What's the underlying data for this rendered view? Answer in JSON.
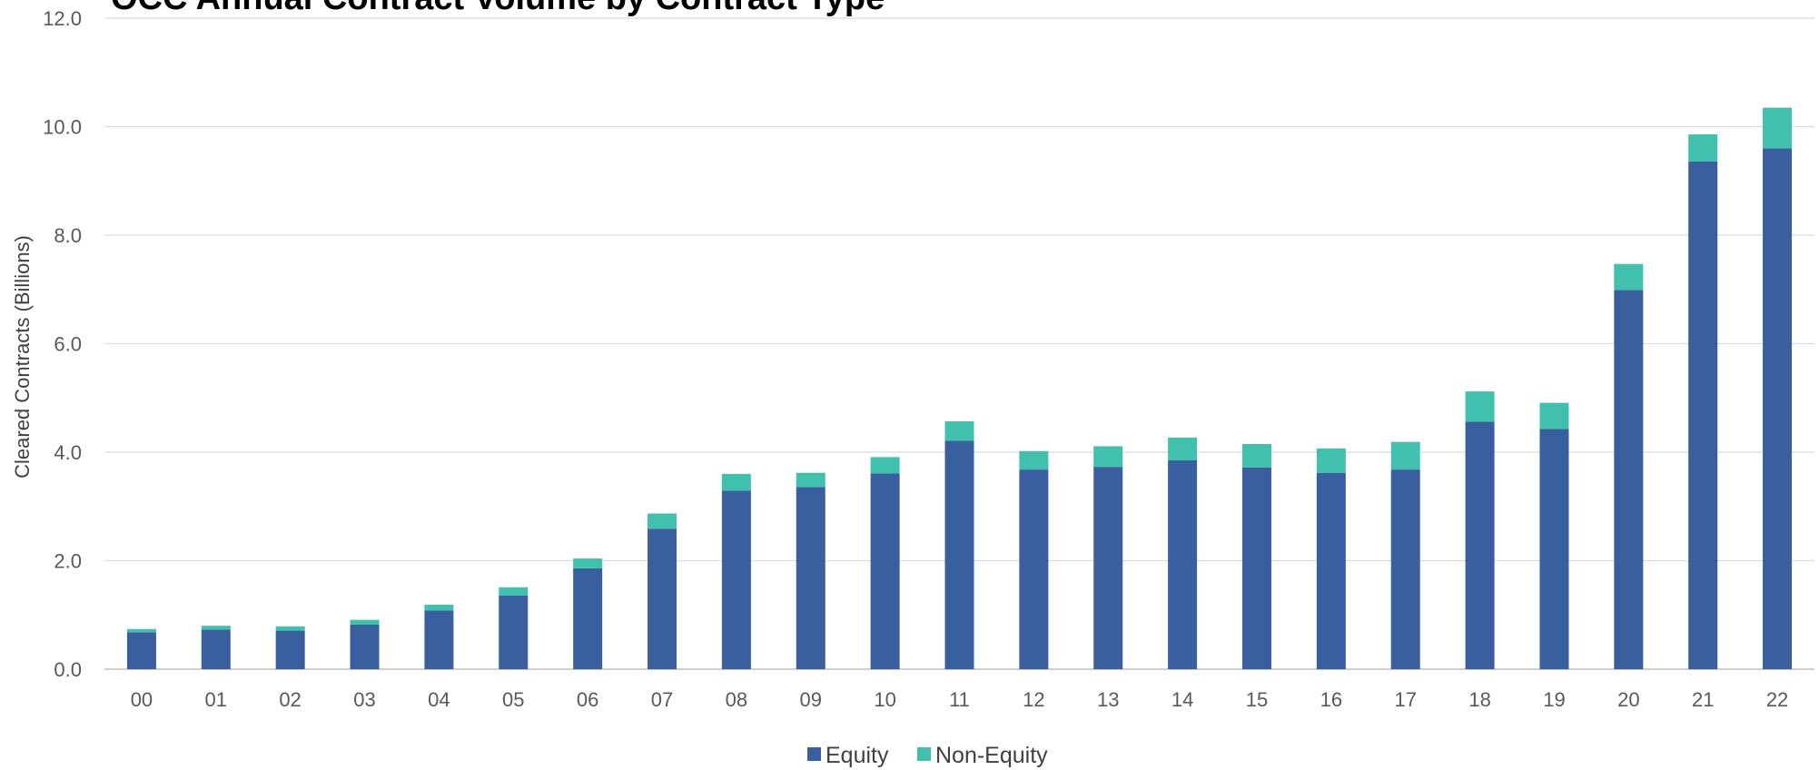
{
  "chart_data": {
    "type": "bar",
    "stacked": true,
    "title": "OCC Annual Contract Volume by Contract Type",
    "xlabel": "",
    "ylabel": "Cleared Contracts (Billions)",
    "ylim": [
      0,
      12
    ],
    "yticks": [
      "0.0",
      "2.0",
      "4.0",
      "6.0",
      "8.0",
      "10.0",
      "12.0"
    ],
    "grid": true,
    "legend_position": "bottom-center",
    "categories": [
      "00",
      "01",
      "02",
      "03",
      "04",
      "05",
      "06",
      "07",
      "08",
      "09",
      "10",
      "11",
      "12",
      "13",
      "14",
      "15",
      "16",
      "17",
      "18",
      "19",
      "20",
      "21",
      "22"
    ],
    "series": [
      {
        "name": "Equity",
        "color": "#3a5f9e",
        "values": [
          0.68,
          0.73,
          0.71,
          0.82,
          1.08,
          1.36,
          1.86,
          2.59,
          3.29,
          3.36,
          3.61,
          4.21,
          3.68,
          3.73,
          3.85,
          3.72,
          3.62,
          3.68,
          4.56,
          4.43,
          6.99,
          9.36,
          9.6
        ]
      },
      {
        "name": "Non-Equity",
        "color": "#41c0ae",
        "values": [
          0.06,
          0.07,
          0.08,
          0.09,
          0.11,
          0.15,
          0.18,
          0.28,
          0.31,
          0.26,
          0.3,
          0.36,
          0.34,
          0.38,
          0.42,
          0.43,
          0.45,
          0.51,
          0.56,
          0.48,
          0.48,
          0.5,
          0.75
        ]
      }
    ]
  }
}
